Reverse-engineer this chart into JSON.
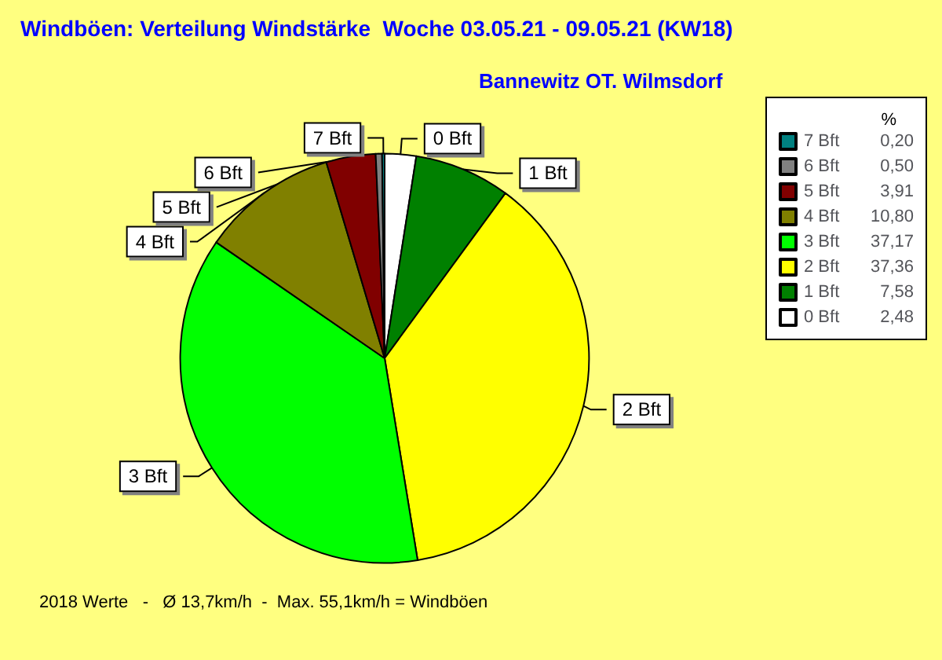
{
  "chart_data": {
    "type": "pie",
    "title": "Windböen: Verteilung Windstärke  Woche 03.05.21 - 09.05.21 (KW18)",
    "subtitle": "Bannewitz OT. Wilmsdorf",
    "legend_title": "%",
    "categories": [
      "0 Bft",
      "1 Bft",
      "2 Bft",
      "3 Bft",
      "4 Bft",
      "5 Bft",
      "6 Bft",
      "7 Bft"
    ],
    "values": [
      2.48,
      7.58,
      37.36,
      37.17,
      10.8,
      3.91,
      0.5,
      0.2
    ],
    "value_labels": [
      "2,48",
      "7,58",
      "37,36",
      "37,17",
      "10,80",
      "3,91",
      "0,50",
      "0,20"
    ],
    "colors": [
      "#ffffff",
      "#008000",
      "#ffff00",
      "#00ff00",
      "#808000",
      "#800000",
      "#808080",
      "#008080"
    ],
    "legend": "top right",
    "annotations": [
      "2018 Werte   -   Ø 13,7km/h  -  Max. 55,1km/h = Windböen"
    ]
  }
}
